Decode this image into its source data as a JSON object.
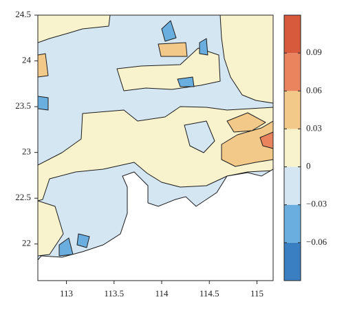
{
  "chart_data": {
    "type": "contourf",
    "xlim": [
      112.7,
      115.17
    ],
    "xticks": [
      113,
      113.5,
      114,
      114.5,
      115
    ],
    "ylim": [
      21.6,
      24.5
    ],
    "yticks": [
      22,
      22.5,
      23,
      23.5,
      24,
      24.5
    ],
    "levels": [
      -0.09,
      -0.06,
      -0.03,
      0,
      0.03,
      0.06,
      0.09,
      0.12
    ],
    "colors": [
      "#3a7fc1",
      "#6aaee0",
      "#d5e6f3",
      "#f8f3cc",
      "#f3c98a",
      "#e9845f",
      "#d85a3d"
    ],
    "colorbar_ticks": [
      {
        "value": -0.06,
        "label": "−0.06"
      },
      {
        "value": -0.03,
        "label": "−0.03"
      },
      0,
      0.03,
      0.06,
      0.09
    ]
  }
}
